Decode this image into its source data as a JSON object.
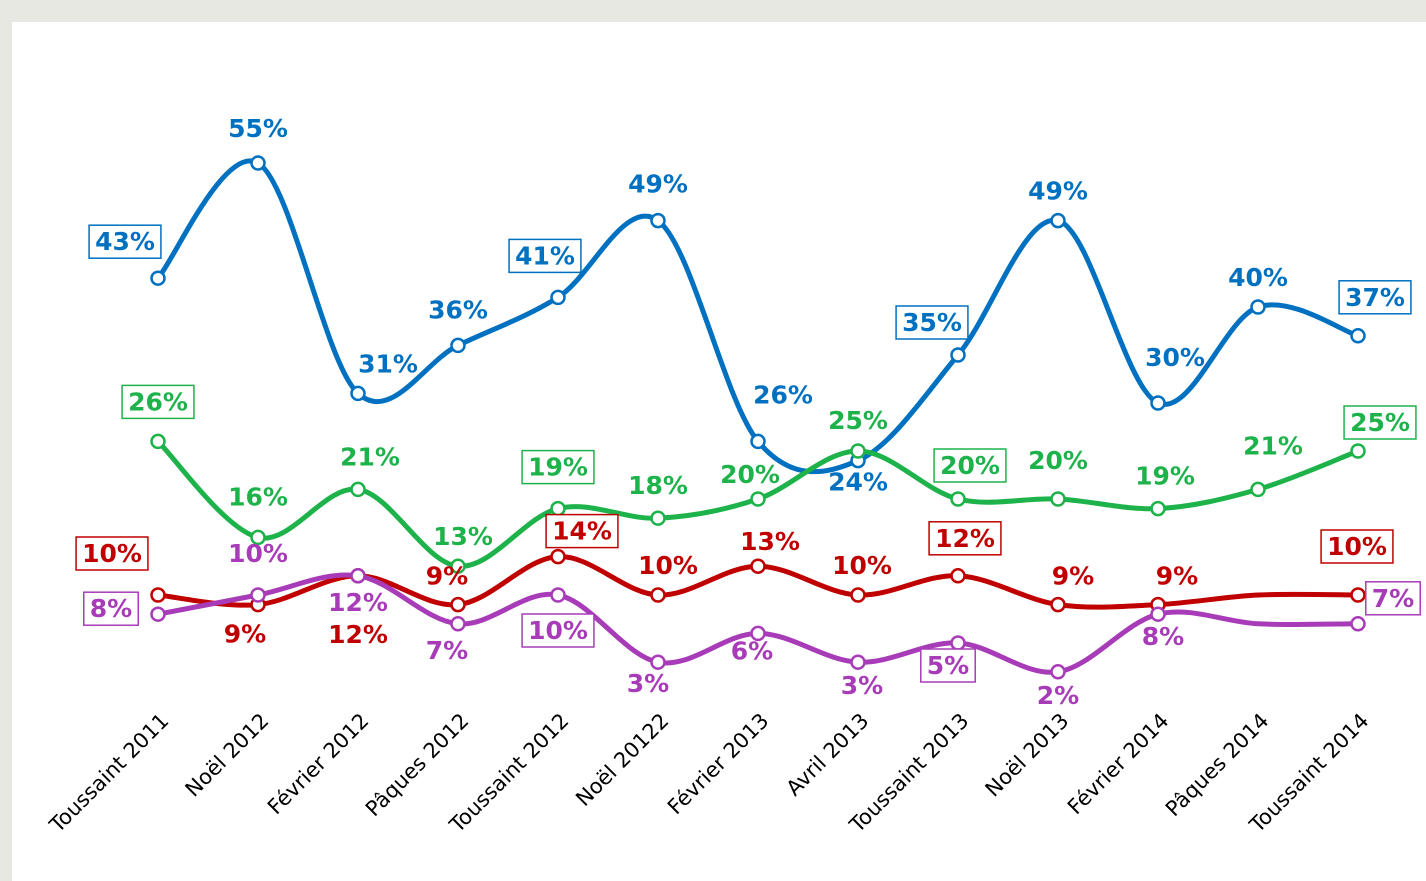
{
  "chart_data": {
    "type": "line",
    "categories": [
      "Toussaint 2011",
      "Noël 2012",
      "Février 2012",
      "Pâques 2012",
      "Toussaint 2012",
      "Noël 20122",
      "Février 2013",
      "Avril 2013",
      "Toussaint 2013",
      "Noël 2013",
      "Février 2014",
      "Pâques 2014",
      "Toussaint 2014"
    ],
    "ylim": [
      0,
      70
    ],
    "series": [
      {
        "color": "#0070c0",
        "values": [
          43,
          55,
          31,
          36,
          41,
          49,
          26,
          24,
          35,
          49,
          30,
          40,
          37
        ],
        "value_labels": [
          "43%",
          "55%",
          "31%",
          "36%",
          "41%",
          "49%",
          "26%",
          "24%",
          "35%",
          "49%",
          "30%",
          "40%",
          "37%"
        ]
      },
      {
        "color": "#1db34a",
        "values": [
          26,
          16,
          21,
          13,
          19,
          18,
          20,
          25,
          20,
          20,
          19,
          21,
          25
        ],
        "value_labels": [
          "26%",
          "16%",
          "21%",
          "13%",
          "19%",
          "18%",
          "20%",
          "25%",
          "20%",
          "20%",
          "19%",
          "21%",
          "25%"
        ]
      },
      {
        "color": "#c00000",
        "values": [
          10,
          9,
          12,
          9,
          14,
          10,
          13,
          10,
          12,
          9,
          9,
          10,
          10
        ],
        "value_labels": [
          "10%",
          "9%",
          "12%",
          "9%",
          "14%",
          "10%",
          "13%",
          "10%",
          "12%",
          "9%",
          "9%",
          null,
          "10%"
        ]
      },
      {
        "color": "#a83cb8",
        "values": [
          8,
          10,
          12,
          7,
          10,
          3,
          6,
          3,
          5,
          2,
          8,
          7,
          7
        ],
        "value_labels": [
          "8%",
          "10%",
          "12%",
          "7%",
          "10%",
          "3%",
          "6%",
          "3%",
          "5%",
          "2%",
          "8%",
          null,
          "7%"
        ]
      }
    ]
  }
}
